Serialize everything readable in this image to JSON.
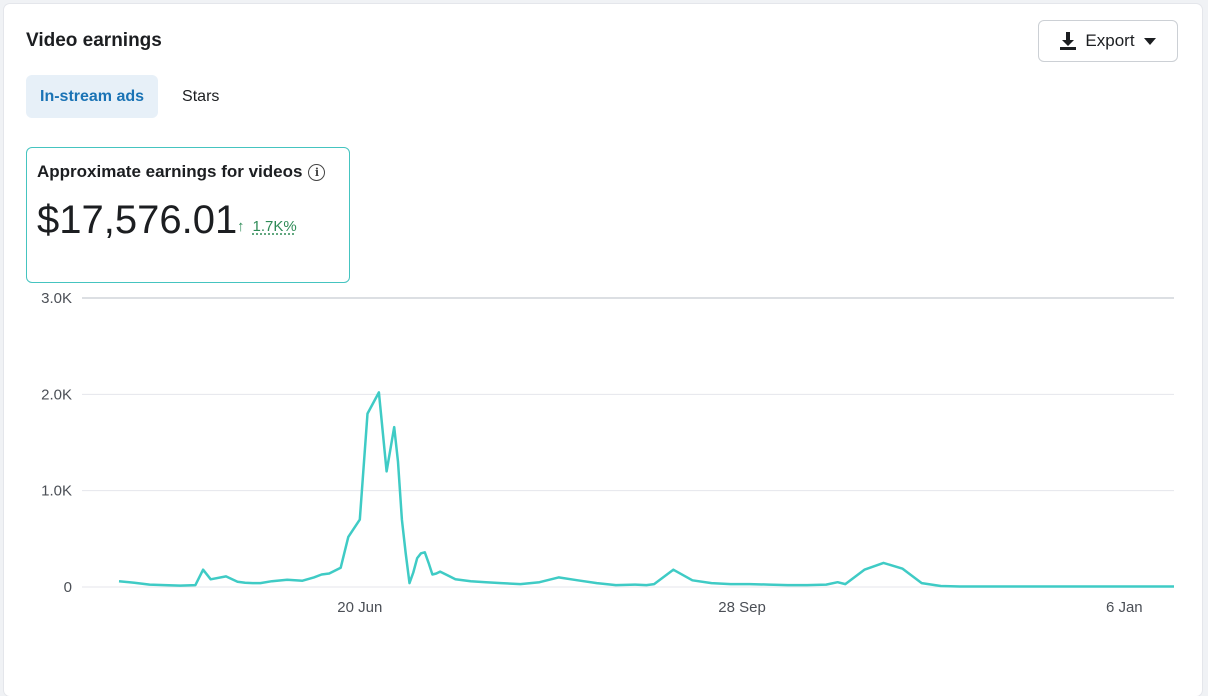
{
  "header": {
    "title": "Video earnings"
  },
  "export": {
    "label": "Export",
    "icon": "download-icon",
    "caret_icon": "caret-down-icon"
  },
  "tabs": [
    {
      "label": "In-stream ads",
      "active": true
    },
    {
      "label": "Stars",
      "active": false
    }
  ],
  "metric": {
    "label": "Approximate earnings for videos",
    "info_icon": "info-icon",
    "value": "$17,576.01",
    "change_arrow": "↑",
    "change": "1.7K%",
    "change_color": "#2e8b57",
    "border_color": "#45c4c0"
  },
  "colors": {
    "accent": "#1a73b5",
    "line": "#3fcbc5",
    "grid": "#e4e6eb"
  },
  "chart_data": {
    "type": "line",
    "xlabel": "",
    "ylabel": "",
    "ylim": [
      0,
      3000
    ],
    "yticks": [
      0,
      1000,
      2000,
      3000
    ],
    "ytick_labels": [
      "0",
      "1.0K",
      "2.0K",
      "3.0K"
    ],
    "xticks": [
      {
        "day": 63,
        "label": "20 Jun"
      },
      {
        "day": 163,
        "label": "28 Sep"
      },
      {
        "day": 263,
        "label": "6 Jan"
      }
    ],
    "x_range": [
      0,
      276
    ],
    "grid": true,
    "series": [
      {
        "x": [
          0,
          4,
          8,
          12,
          16,
          20,
          22,
          24,
          28,
          31,
          33,
          35,
          37,
          40,
          44,
          48,
          51,
          53,
          55,
          58,
          60,
          63,
          65,
          68,
          70,
          72,
          73,
          74,
          75,
          76,
          77,
          78,
          79,
          80,
          81,
          82,
          83,
          84,
          86,
          88,
          90,
          92,
          94,
          96,
          100,
          105,
          110,
          115,
          120,
          125,
          130,
          135,
          138,
          140,
          145,
          150,
          155,
          160,
          165,
          170,
          175,
          180,
          185,
          188,
          190,
          195,
          200,
          205,
          210,
          215,
          220,
          225,
          229,
          230,
          231,
          232,
          233,
          235,
          240,
          250,
          260,
          270,
          276
        ],
        "y": [
          60,
          45,
          25,
          20,
          15,
          20,
          180,
          80,
          110,
          55,
          45,
          40,
          40,
          60,
          75,
          65,
          100,
          130,
          140,
          200,
          520,
          700,
          1800,
          2020,
          1200,
          1660,
          1300,
          700,
          350,
          40,
          150,
          300,
          350,
          360,
          250,
          130,
          140,
          160,
          120,
          80,
          70,
          60,
          55,
          50,
          40,
          30,
          50,
          100,
          70,
          40,
          20,
          25,
          20,
          30,
          180,
          70,
          40,
          30,
          30,
          25,
          20,
          20,
          25,
          50,
          30,
          180,
          250,
          190,
          40,
          10,
          5,
          5,
          5,
          5,
          5,
          5,
          5,
          5,
          5,
          5,
          5,
          5,
          5
        ]
      }
    ]
  }
}
